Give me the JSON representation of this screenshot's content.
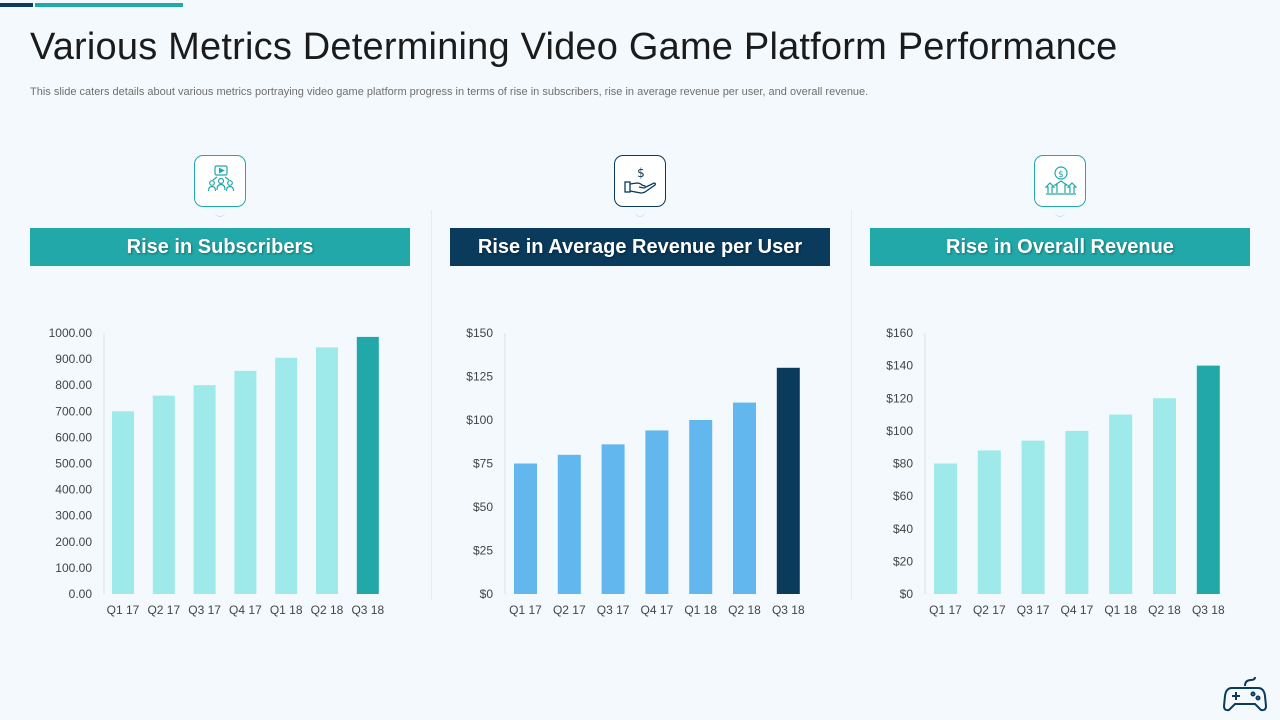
{
  "title": "Various Metrics Determining Video Game Platform Performance",
  "subtitle": "This slide caters details about various metrics portraying video game platform progress in terms of rise in subscribers, rise in average revenue per user, and overall revenue.",
  "icons": [
    "subscribers-icon",
    "revenue-hand-icon",
    "overall-revenue-icon",
    "gamepad-icon"
  ],
  "colors": {
    "teal": "#22a8a8",
    "navy": "#0a3a5c",
    "light_teal": "#9ee9ea",
    "light_blue": "#62b8ee"
  },
  "chart_data": [
    {
      "type": "bar",
      "title": "Rise in Subscribers",
      "categories": [
        "Q1 17",
        "Q2 17",
        "Q3 17",
        "Q4 17",
        "Q1 18",
        "Q2 18",
        "Q3 18"
      ],
      "values": [
        700,
        760,
        800,
        855,
        905,
        945,
        985
      ],
      "ylim": [
        0,
        1000
      ],
      "ytick_step": 100,
      "ytick_labels": [
        "0.00",
        "100.00",
        "200.00",
        "300.00",
        "400.00",
        "500.00",
        "600.00",
        "700.00",
        "800.00",
        "900.00",
        "1000.00"
      ],
      "xlabel": "",
      "ylabel": "",
      "bar_color": "#9ee9ea",
      "highlight_color": "#22a8a8"
    },
    {
      "type": "bar",
      "title": "Rise in Average Revenue per User",
      "categories": [
        "Q1 17",
        "Q2 17",
        "Q3 17",
        "Q4 17",
        "Q1 18",
        "Q2 18",
        "Q3 18"
      ],
      "values": [
        75,
        80,
        86,
        94,
        100,
        110,
        130
      ],
      "ylim": [
        0,
        150
      ],
      "ytick_step": 25,
      "ytick_labels": [
        "$0",
        "$25",
        "$50",
        "$75",
        "$100",
        "$125",
        "$150"
      ],
      "xlabel": "",
      "ylabel": "",
      "bar_color": "#62b8ee",
      "highlight_color": "#0a3a5c"
    },
    {
      "type": "bar",
      "title": "Rise in Overall Revenue",
      "categories": [
        "Q1 17",
        "Q2 17",
        "Q3 17",
        "Q4 17",
        "Q1 18",
        "Q2 18",
        "Q3 18"
      ],
      "values": [
        80,
        88,
        94,
        100,
        110,
        120,
        140
      ],
      "ylim": [
        0,
        160
      ],
      "ytick_step": 20,
      "ytick_labels": [
        "$0",
        "$20",
        "$40",
        "$60",
        "$80",
        "$100",
        "$120",
        "$140",
        "$160"
      ],
      "xlabel": "",
      "ylabel": "",
      "bar_color": "#9ee9ea",
      "highlight_color": "#22a8a8"
    }
  ]
}
